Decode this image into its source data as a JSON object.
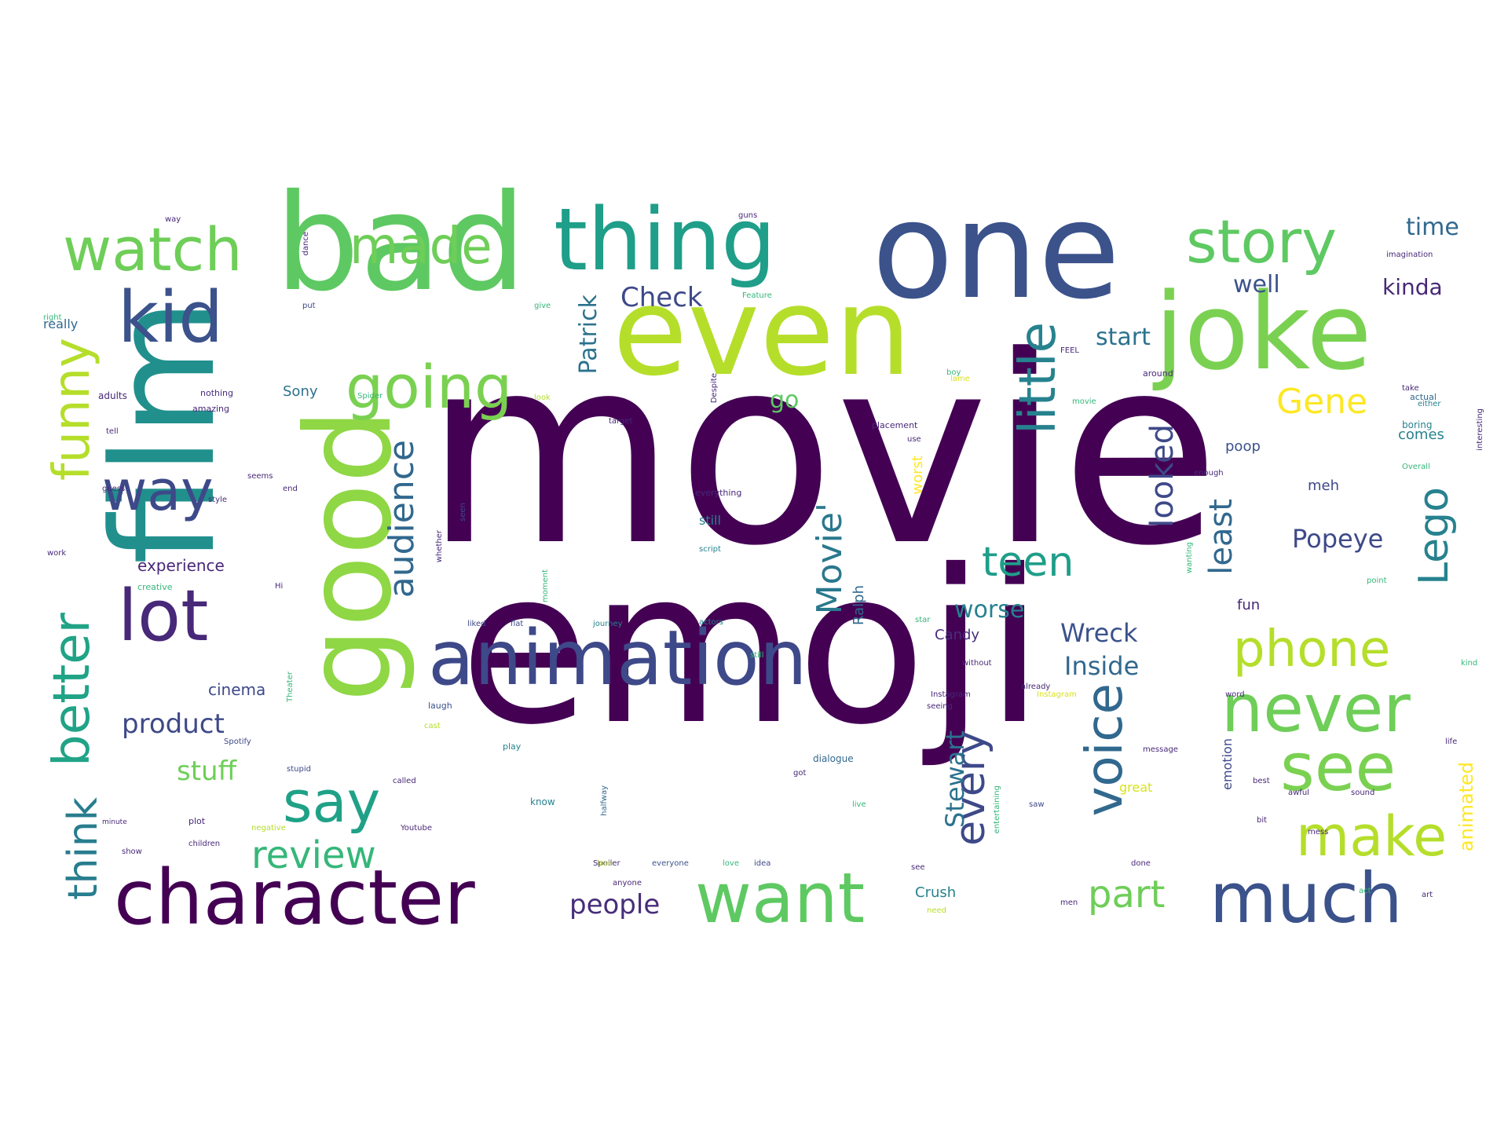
{
  "colors": {
    "background": "#ffffff",
    "palette": [
      "#440154",
      "#482878",
      "#3e4989",
      "#31688e",
      "#26828e",
      "#1f9e89",
      "#35b779",
      "#6ece58",
      "#b5de2b",
      "#fde725"
    ]
  },
  "words": [
    {
      "text": "movie",
      "color": "#440154"
    },
    {
      "text": "emoji",
      "color": "#440154"
    },
    {
      "text": "film",
      "color": "#21908d"
    },
    {
      "text": "one",
      "color": "#3b528b"
    },
    {
      "text": "bad",
      "color": "#5ec962"
    },
    {
      "text": "even",
      "color": "#b5de2b"
    },
    {
      "text": "good",
      "color": "#8fd744"
    },
    {
      "text": "joke",
      "color": "#7ad151"
    },
    {
      "text": "thing",
      "color": "#1f9e89"
    },
    {
      "text": "animation",
      "color": "#3e4989"
    },
    {
      "text": "character",
      "color": "#440154"
    },
    {
      "text": "kid",
      "color": "#3b528b"
    },
    {
      "text": "lot",
      "color": "#482878"
    },
    {
      "text": "watch",
      "color": "#6ece58"
    },
    {
      "text": "story",
      "color": "#5ec962"
    },
    {
      "text": "made",
      "color": "#6ece58"
    },
    {
      "text": "going",
      "color": "#7ad151"
    },
    {
      "text": "way",
      "color": "#3e4989"
    },
    {
      "text": "funny",
      "color": "#b5de2b"
    },
    {
      "text": "better",
      "color": "#20a386"
    },
    {
      "text": "think",
      "color": "#287d8e"
    },
    {
      "text": "say",
      "color": "#1fa187"
    },
    {
      "text": "want",
      "color": "#5ec962"
    },
    {
      "text": "much",
      "color": "#3b528b"
    },
    {
      "text": "never",
      "color": "#6ece58"
    },
    {
      "text": "see",
      "color": "#7ad151"
    },
    {
      "text": "make",
      "color": "#b5de2b"
    },
    {
      "text": "phone",
      "color": "#b5de2b"
    },
    {
      "text": "little",
      "color": "#26828e"
    },
    {
      "text": "voice",
      "color": "#31688e"
    },
    {
      "text": "every",
      "color": "#3e4989"
    },
    {
      "text": "review",
      "color": "#35b779"
    },
    {
      "text": "teen",
      "color": "#1f9e89"
    },
    {
      "text": "audience",
      "color": "#31688e"
    },
    {
      "text": "Lego",
      "color": "#26828e"
    },
    {
      "text": "Gene",
      "color": "#fde725"
    },
    {
      "text": "Movie'",
      "color": "#2a788e"
    },
    {
      "text": "looked",
      "color": "#3e4989"
    },
    {
      "text": "least",
      "color": "#31688e"
    },
    {
      "text": "part",
      "color": "#6ece58"
    },
    {
      "text": "product",
      "color": "#3e4989"
    },
    {
      "text": "stuff",
      "color": "#6ece58"
    },
    {
      "text": "people",
      "color": "#472d7b"
    },
    {
      "text": "Stewart",
      "color": "#2c728e"
    },
    {
      "text": "Popeye",
      "color": "#3e4989"
    },
    {
      "text": "Check",
      "color": "#3e4989"
    },
    {
      "text": "Patrick",
      "color": "#2c728e"
    },
    {
      "text": "time",
      "color": "#31688e"
    },
    {
      "text": "kinda",
      "color": "#482878"
    },
    {
      "text": "well",
      "color": "#3b528b"
    },
    {
      "text": "start",
      "color": "#2c728e"
    },
    {
      "text": "Wreck",
      "color": "#3b528b"
    },
    {
      "text": "Inside",
      "color": "#31688e"
    },
    {
      "text": "worse",
      "color": "#26828e"
    },
    {
      "text": "go",
      "color": "#5ec962"
    },
    {
      "text": "animated",
      "color": "#fde725"
    },
    {
      "text": "Crush",
      "color": "#26828e"
    },
    {
      "text": "Candy",
      "color": "#472d7b"
    },
    {
      "text": "Ralph",
      "color": "#31688e"
    },
    {
      "text": "experience",
      "color": "#482878"
    },
    {
      "text": "cinema",
      "color": "#3e4989"
    },
    {
      "text": "Sony",
      "color": "#2c728e"
    },
    {
      "text": "fun",
      "color": "#482878"
    },
    {
      "text": "emotion",
      "color": "#3e4989"
    },
    {
      "text": "poop",
      "color": "#3b528b"
    },
    {
      "text": "comes",
      "color": "#26828e"
    },
    {
      "text": "meh",
      "color": "#3e4989"
    },
    {
      "text": "still",
      "color": "#26828e"
    },
    {
      "text": "worst",
      "color": "#fde725"
    },
    {
      "text": "great",
      "color": "#d8e219"
    },
    {
      "text": "really",
      "color": "#31688e"
    },
    {
      "text": "adults",
      "color": "#482878"
    },
    {
      "text": "amazing",
      "color": "#482878"
    },
    {
      "text": "nothing",
      "color": "#472d7b"
    },
    {
      "text": "placement",
      "color": "#482878"
    },
    {
      "text": "dialogue",
      "color": "#31688e"
    },
    {
      "text": "laugh",
      "color": "#3b528b"
    },
    {
      "text": "Spotify",
      "color": "#3e4989"
    },
    {
      "text": "children",
      "color": "#482878"
    },
    {
      "text": "Youtube",
      "color": "#482878"
    },
    {
      "text": "Instagram",
      "color": "#482878"
    },
    {
      "text": "journey",
      "color": "#26828e"
    },
    {
      "text": "actors",
      "color": "#26828e"
    },
    {
      "text": "imagination",
      "color": "#482878"
    },
    {
      "text": "creative",
      "color": "#35b779"
    },
    {
      "text": "everything",
      "color": "#482878"
    },
    {
      "text": "everyone",
      "color": "#3b528b"
    },
    {
      "text": "message",
      "color": "#482878"
    },
    {
      "text": "boring",
      "color": "#26828e"
    },
    {
      "text": "actual",
      "color": "#31688e"
    },
    {
      "text": "around",
      "color": "#482878"
    },
    {
      "text": "without",
      "color": "#482878"
    },
    {
      "text": "already",
      "color": "#482878"
    },
    {
      "text": "seeing",
      "color": "#482878"
    },
    {
      "text": "called",
      "color": "#482878"
    },
    {
      "text": "stupid",
      "color": "#3e4989"
    },
    {
      "text": "minute",
      "color": "#482878"
    },
    {
      "text": "play",
      "color": "#26828e"
    },
    {
      "text": "know",
      "color": "#26828e"
    },
    {
      "text": "plot",
      "color": "#482878"
    },
    {
      "text": "idea",
      "color": "#3e4989"
    },
    {
      "text": "done",
      "color": "#482878"
    },
    {
      "text": "best",
      "color": "#482878"
    },
    {
      "text": "life",
      "color": "#482878"
    },
    {
      "text": "bit",
      "color": "#482878"
    },
    {
      "text": "art",
      "color": "#482878"
    },
    {
      "text": "sound",
      "color": "#482878"
    },
    {
      "text": "awful",
      "color": "#482878"
    },
    {
      "text": "love",
      "color": "#35b779"
    },
    {
      "text": "give",
      "color": "#35b779"
    },
    {
      "text": "end",
      "color": "#482878"
    },
    {
      "text": "style",
      "color": "#482878"
    },
    {
      "text": "guess",
      "color": "#482878"
    },
    {
      "text": "seems",
      "color": "#482878"
    },
    {
      "text": "right",
      "color": "#35b779"
    },
    {
      "text": "tell",
      "color": "#482878"
    },
    {
      "text": "work",
      "color": "#482878"
    },
    {
      "text": "put",
      "color": "#3e4989"
    },
    {
      "text": "got",
      "color": "#482878"
    },
    {
      "text": "saw",
      "color": "#3e4989"
    },
    {
      "text": "see",
      "color": "#482878"
    },
    {
      "text": "Hi",
      "color": "#482878"
    },
    {
      "text": "Spider",
      "color": "#35b779"
    },
    {
      "text": "Despite",
      "color": "#482878"
    },
    {
      "text": "target",
      "color": "#482878"
    },
    {
      "text": "Overall",
      "color": "#35b779"
    },
    {
      "text": "either",
      "color": "#26828e"
    },
    {
      "text": "enough",
      "color": "#482878"
    },
    {
      "text": "kind",
      "color": "#35b779"
    },
    {
      "text": "take",
      "color": "#482878"
    },
    {
      "text": "way",
      "color": "#482878"
    },
    {
      "text": "guns",
      "color": "#482878"
    },
    {
      "text": "dance",
      "color": "#482878"
    },
    {
      "text": "Feature",
      "color": "#35b779"
    },
    {
      "text": "seen",
      "color": "#3e4989"
    },
    {
      "text": "liked",
      "color": "#3e4989"
    },
    {
      "text": "flat",
      "color": "#3e4989"
    },
    {
      "text": "Spoiler",
      "color": "#482878"
    },
    {
      "text": "negative",
      "color": "#b5de2b"
    },
    {
      "text": "halfway",
      "color": "#31688e"
    },
    {
      "text": "anyone",
      "color": "#482878"
    },
    {
      "text": "cast",
      "color": "#b5de2b"
    },
    {
      "text": "word",
      "color": "#482878"
    },
    {
      "text": "need",
      "color": "#b5de2b"
    },
    {
      "text": "men",
      "color": "#482878"
    },
    {
      "text": "mess",
      "color": "#482878"
    },
    {
      "text": "point",
      "color": "#35b779"
    },
    {
      "text": "star",
      "color": "#35b779"
    },
    {
      "text": "boy",
      "color": "#35b779"
    },
    {
      "text": "act",
      "color": "#35b779"
    },
    {
      "text": "look",
      "color": "#b5de2b"
    },
    {
      "text": "lose",
      "color": "#b5de2b"
    },
    {
      "text": "use",
      "color": "#482878"
    },
    {
      "text": "FEEL",
      "color": "#482878"
    },
    {
      "text": "script",
      "color": "#26828e"
    },
    {
      "text": "whether",
      "color": "#482878"
    },
    {
      "text": "moment",
      "color": "#35b779"
    },
    {
      "text": "interesting",
      "color": "#482878"
    },
    {
      "text": "entertaining",
      "color": "#35b779"
    },
    {
      "text": "wanting",
      "color": "#35b779"
    },
    {
      "text": "Instagram",
      "color": "#d8e219"
    },
    {
      "text": "show",
      "color": "#482878"
    },
    {
      "text": "live",
      "color": "#35b779"
    },
    {
      "text": "still",
      "color": "#35b779"
    },
    {
      "text": "Theater",
      "color": "#35b779"
    },
    {
      "text": "lame",
      "color": "#d8e219"
    },
    {
      "text": "movie",
      "color": "#35b779"
    }
  ]
}
